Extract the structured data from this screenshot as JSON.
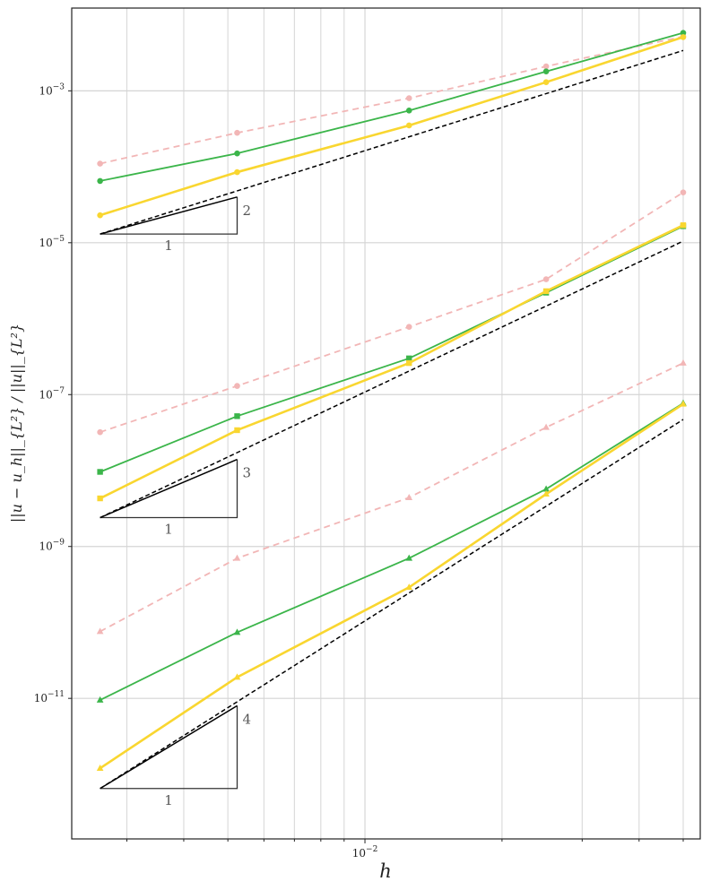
{
  "chart_data": {
    "type": "line",
    "scale": {
      "x": "log",
      "y": "log"
    },
    "xlim": [
      0.00227,
      0.0545
    ],
    "ylim": [
      1.41e-13,
      0.0123
    ],
    "xlabel": "h",
    "ylabel": "||u − u_h||_{L²} / ||u||_{L²}",
    "x_major_ticks": [
      {
        "value": 0.01,
        "label_base": "10",
        "label_exp": "−2"
      }
    ],
    "y_major_ticks": [
      {
        "value": 0.001,
        "label_base": "10",
        "label_exp": "−3"
      },
      {
        "value": 1e-05,
        "label_base": "10",
        "label_exp": "−5"
      },
      {
        "value": 1e-07,
        "label_base": "10",
        "label_exp": "−7"
      },
      {
        "value": 1e-09,
        "label_base": "10",
        "label_exp": "−9"
      },
      {
        "value": 1e-11,
        "label_base": "10",
        "label_exp": "−11"
      }
    ],
    "grid": "major and minor",
    "colors": {
      "pink": "#f2b6b6",
      "green": "#3bb54a",
      "yellow": "#f9d630",
      "reference": "#000000"
    },
    "series": [
      {
        "group": "order 1",
        "style": "pink-dashed",
        "marker": "circle",
        "x": [
          0.00262,
          0.00524,
          0.0125,
          0.025,
          0.05
        ],
        "y": [
          0.00011,
          0.00028,
          0.0008,
          0.0021,
          0.0052
        ]
      },
      {
        "group": "order 1",
        "style": "green",
        "marker": "circle",
        "x": [
          0.00262,
          0.00524,
          0.0125,
          0.025,
          0.05
        ],
        "y": [
          6.5e-05,
          0.00015,
          0.00055,
          0.0018,
          0.0058
        ]
      },
      {
        "group": "order 1",
        "style": "yellow",
        "marker": "circle",
        "x": [
          0.00262,
          0.00524,
          0.0125,
          0.025,
          0.05
        ],
        "y": [
          2.3e-05,
          8.5e-05,
          0.00035,
          0.0013,
          0.0051
        ]
      },
      {
        "group": "order 1",
        "style": "reference",
        "x": [
          0.00262,
          0.05
        ],
        "y": [
          1.3e-05,
          0.0034
        ]
      },
      {
        "group": "order 2",
        "style": "pink-dashed",
        "marker": "circle",
        "x": [
          0.00262,
          0.00524,
          0.0125,
          0.025,
          0.05
        ],
        "y": [
          3.2e-08,
          1.3e-07,
          7.8e-07,
          3.3e-06,
          4.6e-05
        ]
      },
      {
        "group": "order 2",
        "style": "green",
        "marker": "square",
        "x": [
          0.00262,
          0.00524,
          0.0125,
          0.025,
          0.05
        ],
        "y": [
          9.6e-09,
          5.2e-08,
          3e-07,
          2.2e-06,
          1.65e-05
        ]
      },
      {
        "group": "order 2",
        "style": "yellow",
        "marker": "square",
        "x": [
          0.00262,
          0.00524,
          0.0125,
          0.025,
          0.05
        ],
        "y": [
          4.3e-09,
          3.4e-08,
          2.6e-07,
          2.3e-06,
          1.7e-05
        ]
      },
      {
        "group": "order 2",
        "style": "reference",
        "x": [
          0.00262,
          0.05
        ],
        "y": [
          2.4e-09,
          1.05e-05
        ]
      },
      {
        "group": "order 3",
        "style": "pink-dashed",
        "marker": "triangle",
        "x": [
          0.00262,
          0.00524,
          0.0125,
          0.025,
          0.05
        ],
        "y": [
          7.6e-11,
          7e-10,
          4.4e-09,
          3.7e-08,
          2.6e-07
        ]
      },
      {
        "group": "order 3",
        "style": "green",
        "marker": "triangle",
        "x": [
          0.00262,
          0.00524,
          0.0125,
          0.025,
          0.05
        ],
        "y": [
          9.5e-12,
          7.4e-11,
          7e-10,
          5.7e-09,
          7.7e-08
        ]
      },
      {
        "group": "order 3",
        "style": "yellow",
        "marker": "triangle",
        "x": [
          0.00262,
          0.00524,
          0.0125,
          0.025,
          0.05
        ],
        "y": [
          1.2e-12,
          1.9e-11,
          2.9e-10,
          4.9e-09,
          7.5e-08
        ]
      },
      {
        "group": "order 3",
        "style": "reference",
        "x": [
          0.00262,
          0.05
        ],
        "y": [
          6.5e-13,
          4.7e-08
        ]
      }
    ],
    "slope_triangles": [
      {
        "x0": 0.00262,
        "x1": 0.00524,
        "y0": 1.3e-05,
        "y1": 4e-05,
        "rise_label": "2",
        "run_label": "1"
      },
      {
        "x0": 0.00262,
        "x1": 0.00524,
        "y0": 2.4e-09,
        "y1": 1.4e-08,
        "rise_label": "3",
        "run_label": "1"
      },
      {
        "x0": 0.00262,
        "x1": 0.00524,
        "y0": 6.5e-13,
        "y1": 8e-12,
        "rise_label": "4",
        "run_label": "1"
      }
    ]
  }
}
